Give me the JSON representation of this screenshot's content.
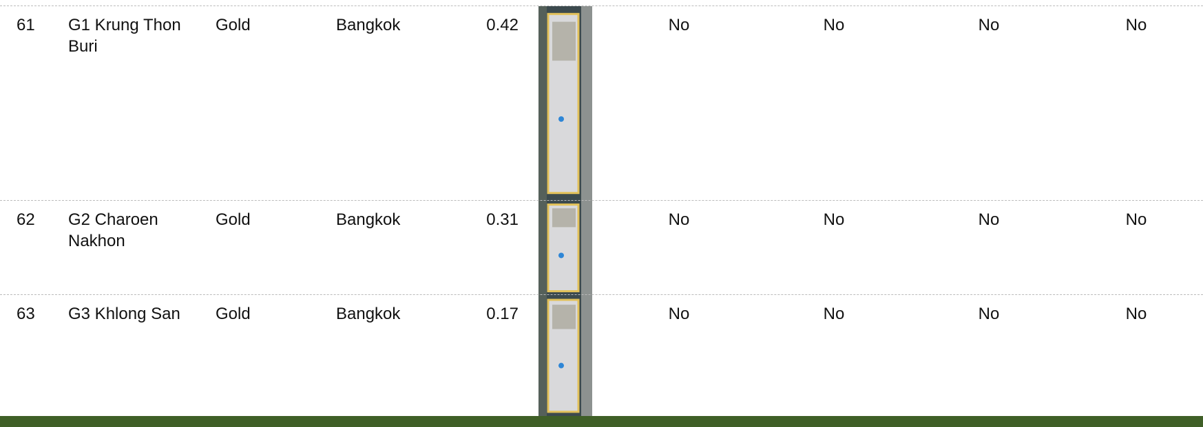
{
  "table": {
    "rows": [
      [
        61,
        "G1 Krung Thon Buri",
        "Gold",
        "Bangkok",
        0.42,
        "No",
        "No",
        "No",
        "No"
      ],
      [
        62,
        "G2 Charoen Nakhon",
        "Gold",
        "Bangkok",
        0.31,
        "No",
        "No",
        "No",
        "No"
      ],
      [
        63,
        "G3 Khlong San",
        "Gold",
        "Bangkok",
        0.17,
        "No",
        "No",
        "No",
        "No"
      ]
    ]
  }
}
